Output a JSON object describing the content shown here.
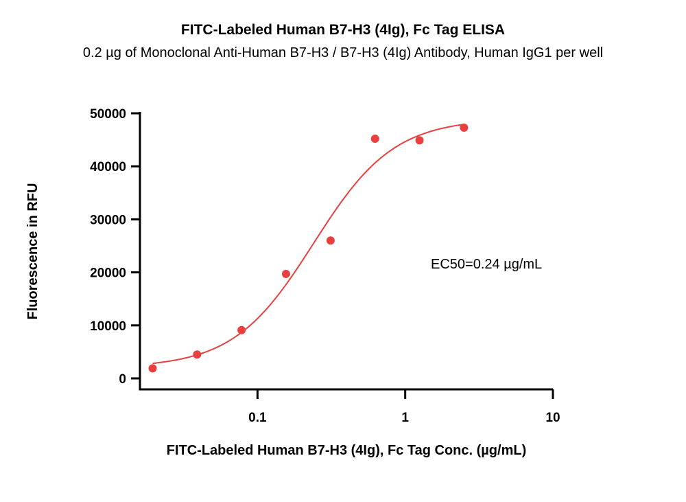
{
  "chart_data": {
    "type": "scatter",
    "title": "FITC-Labeled Human B7-H3 (4Ig), Fc Tag ELISA",
    "subtitle": "0.2 µg of Monoclonal Anti-Human B7-H3 / B7-H3 (4Ig) Antibody, Human IgG1 per well",
    "xlabel": "FITC-Labeled Human B7-H3 (4Ig), Fc Tag Conc. (µg/mL)",
    "ylabel": "Fluorescence in RFU",
    "x_scale": "log",
    "xlim": [
      0.016,
      10
    ],
    "ylim": [
      0,
      50000
    ],
    "x_ticks": [
      0.1,
      1,
      10
    ],
    "x_tick_labels": [
      "0.1",
      "1",
      "10"
    ],
    "y_ticks": [
      0,
      10000,
      20000,
      30000,
      40000,
      50000
    ],
    "y_tick_labels": [
      "0",
      "10000",
      "20000",
      "30000",
      "40000",
      "50000"
    ],
    "grid": false,
    "color": "#e8403f",
    "points": {
      "x": [
        0.0195,
        0.039,
        0.078,
        0.156,
        0.3125,
        0.625,
        1.25,
        2.5
      ],
      "y": [
        1900,
        4500,
        9100,
        19700,
        26000,
        45200,
        44900,
        47300
      ]
    },
    "fit": {
      "model": "4PL",
      "bottom": 2000,
      "top": 49000,
      "ec50": 0.24,
      "hill": 1.6,
      "x_range": [
        0.0195,
        2.5
      ]
    },
    "annotation": "EC50=0.24 µg/mL"
  }
}
